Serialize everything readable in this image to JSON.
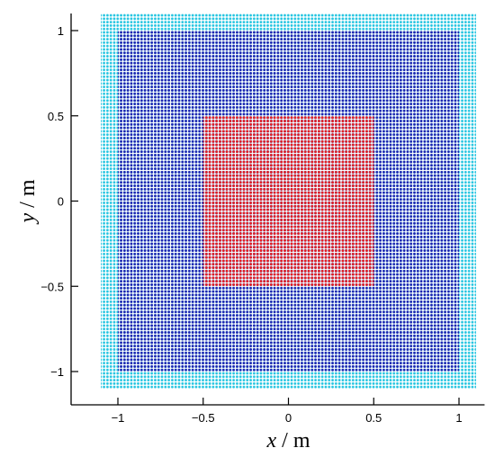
{
  "chart_data": {
    "type": "scatter",
    "title": "",
    "xlabel_var": "x",
    "xlabel_unit": " / m",
    "ylabel_var": "y",
    "ylabel_unit": " / m",
    "xlim": [
      -1.25,
      1.15
    ],
    "ylim": [
      -1.15,
      1.1
    ],
    "xticks": [
      -1,
      -0.5,
      0,
      0.5,
      1
    ],
    "xtick_labels": [
      "−1",
      "−0.5",
      "0",
      "0.5",
      "1"
    ],
    "yticks": [
      -1,
      -0.5,
      0,
      0.5,
      1
    ],
    "ytick_labels": [
      "−1",
      "−0.5",
      "0",
      "0.5",
      "1"
    ],
    "grid": false,
    "particle_spacing": 0.02,
    "series": [
      {
        "region": "boundary",
        "color": "#22c4e0",
        "x_range": [
          -1.1,
          1.1
        ],
        "y_range": [
          -1.1,
          1.1
        ],
        "marker": "dot"
      },
      {
        "region": "fluid",
        "color": "#1f1fb0",
        "x_range": [
          -1.0,
          1.0
        ],
        "y_range": [
          -1.0,
          1.0
        ],
        "marker": "dot"
      },
      {
        "region": "inner",
        "color": "#ee1c1c",
        "x_range": [
          -0.5,
          0.5
        ],
        "y_range": [
          -0.5,
          0.5
        ],
        "marker": "dot"
      }
    ]
  }
}
